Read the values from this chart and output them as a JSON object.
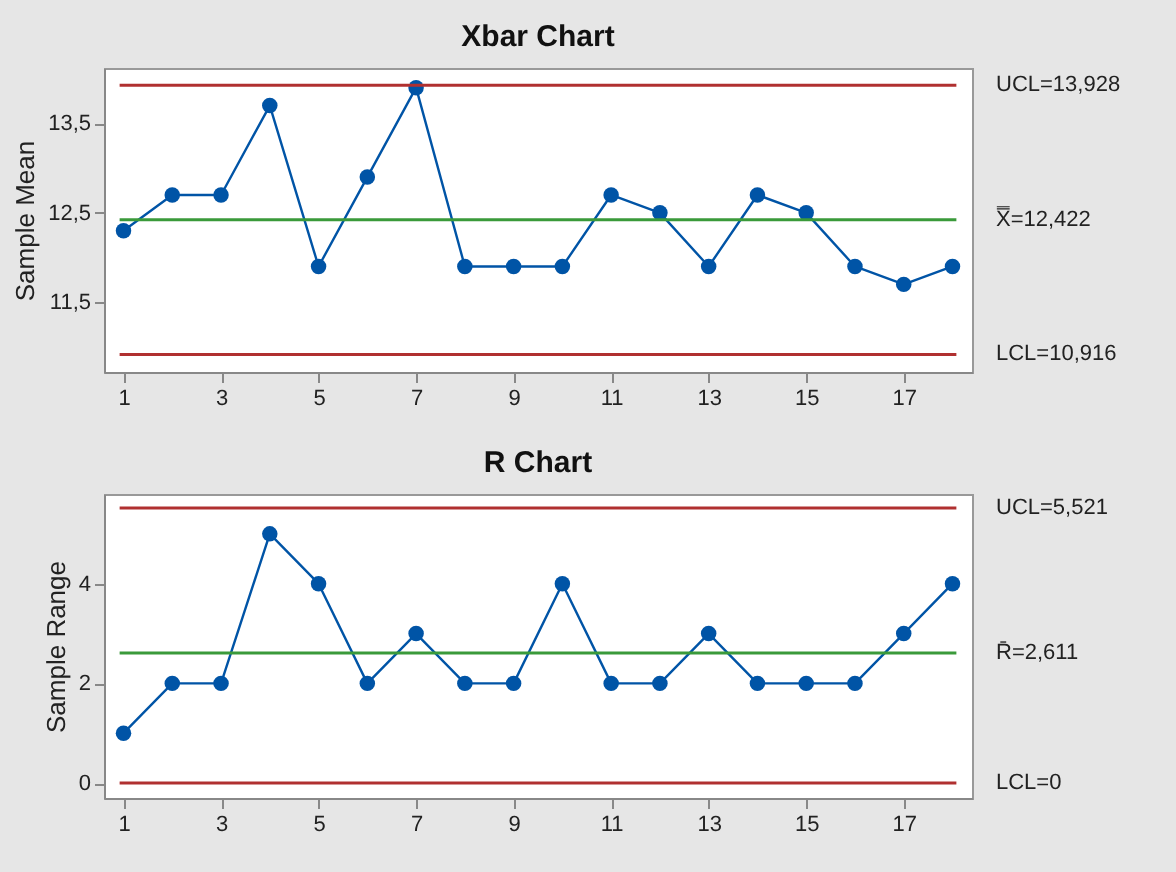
{
  "chart_data": [
    {
      "type": "line",
      "title": "Xbar Chart",
      "ylabel": "Sample Mean",
      "x": [
        1,
        2,
        3,
        4,
        5,
        6,
        7,
        8,
        9,
        10,
        11,
        12,
        13,
        14,
        15,
        16,
        17,
        18
      ],
      "series": [
        {
          "color": "#0054a6",
          "values": [
            12.3,
            12.7,
            12.7,
            13.7,
            11.9,
            12.9,
            13.9,
            11.9,
            11.9,
            11.9,
            12.7,
            12.5,
            11.9,
            12.7,
            12.5,
            11.9,
            11.7,
            11.9
          ]
        }
      ],
      "xlim": [
        0.6,
        18.4
      ],
      "xticks": [
        1,
        3,
        5,
        7,
        9,
        11,
        13,
        15,
        17
      ],
      "ylim": [
        10.72,
        14.12
      ],
      "yticks": [
        {
          "value": 11.5,
          "label": "11,5"
        },
        {
          "value": 12.5,
          "label": "12,5"
        },
        {
          "value": 13.5,
          "label": "13,5"
        }
      ],
      "ref_lines": [
        {
          "axis": "y",
          "value": 13.928,
          "label": "UCL=13,928",
          "color": "#b03030"
        },
        {
          "axis": "y",
          "value": 12.422,
          "label": "X̿=12,422",
          "color": "#3a9a3a"
        },
        {
          "axis": "y",
          "value": 10.916,
          "label": "LCL=10,916",
          "color": "#b03030"
        }
      ],
      "marker": "circle",
      "grid": false,
      "legend": false
    },
    {
      "type": "line",
      "title": "R Chart",
      "ylabel": "Sample Range",
      "x": [
        1,
        2,
        3,
        4,
        5,
        6,
        7,
        8,
        9,
        10,
        11,
        12,
        13,
        14,
        15,
        16,
        17,
        18
      ],
      "series": [
        {
          "color": "#0054a6",
          "values": [
            1,
            2,
            2,
            5,
            4,
            2,
            3,
            2,
            2,
            4,
            2,
            2,
            3,
            2,
            2,
            2,
            3,
            4
          ]
        }
      ],
      "xlim": [
        0.6,
        18.4
      ],
      "xticks": [
        1,
        3,
        5,
        7,
        9,
        11,
        13,
        15,
        17
      ],
      "ylim": [
        -0.3,
        5.8
      ],
      "yticks": [
        0,
        2,
        4
      ],
      "ref_lines": [
        {
          "axis": "y",
          "value": 5.521,
          "label": "UCL=5,521",
          "color": "#b03030"
        },
        {
          "axis": "y",
          "value": 2.611,
          "label": "R̄=2,611",
          "color": "#3a9a3a"
        },
        {
          "axis": "y",
          "value": 0,
          "label": "LCL=0",
          "color": "#b03030"
        }
      ],
      "marker": "circle",
      "grid": false,
      "legend": false
    }
  ]
}
